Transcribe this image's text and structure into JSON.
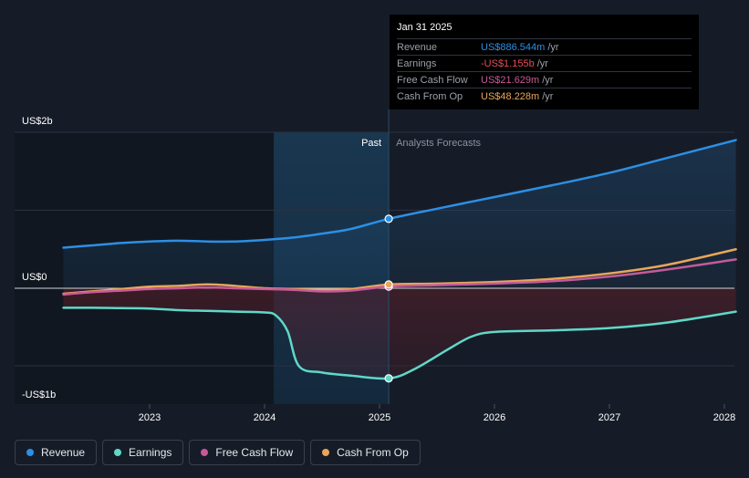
{
  "tooltip": {
    "date": "Jan 31 2025",
    "rows": [
      {
        "label": "Revenue",
        "value": "US$886.544m",
        "unit": "/yr",
        "color": "#2d8fe3"
      },
      {
        "label": "Earnings",
        "value": "-US$1.155b",
        "unit": "/yr",
        "color": "#e84b57"
      },
      {
        "label": "Free Cash Flow",
        "value": "US$21.629m",
        "unit": "/yr",
        "color": "#c65a98"
      },
      {
        "label": "Cash From Op",
        "value": "US$48.228m",
        "unit": "/yr",
        "color": "#e8a65a"
      }
    ]
  },
  "legend": [
    {
      "label": "Revenue",
      "color": "#2d8fe3"
    },
    {
      "label": "Earnings",
      "color": "#5fd8c8"
    },
    {
      "label": "Free Cash Flow",
      "color": "#c65a98"
    },
    {
      "label": "Cash From Op",
      "color": "#e8a65a"
    }
  ],
  "chart_data": {
    "type": "line",
    "y_labels": [
      "US$2b",
      "US$0",
      "-US$1b"
    ],
    "ylim": [
      -1.5,
      2.0
    ],
    "x_range": [
      2022.12,
      2028.1
    ],
    "x_ticks": [
      "2023",
      "2024",
      "2025",
      "2026",
      "2027",
      "2028"
    ],
    "x_tick_values": [
      2023,
      2024,
      2025,
      2026,
      2027,
      2028
    ],
    "past_label": "Past",
    "forecast_label": "Analysts Forecasts",
    "split_x": 2025.08,
    "highlight_start": 2024.08,
    "series": [
      {
        "name": "Revenue",
        "color": "#2d8fe3",
        "x": [
          2022.25,
          2022.5,
          2022.75,
          2023.0,
          2023.25,
          2023.5,
          2023.75,
          2024.0,
          2024.25,
          2024.5,
          2024.75,
          2025.08,
          2025.5,
          2026.0,
          2026.5,
          2027.0,
          2027.5,
          2028.1
        ],
        "values": [
          0.52,
          0.55,
          0.58,
          0.6,
          0.61,
          0.6,
          0.6,
          0.62,
          0.65,
          0.7,
          0.76,
          0.89,
          1.02,
          1.17,
          1.32,
          1.48,
          1.67,
          1.9
        ]
      },
      {
        "name": "Earnings",
        "color": "#5fd8c8",
        "x": [
          2022.25,
          2022.5,
          2022.75,
          2023.0,
          2023.25,
          2023.5,
          2023.75,
          2024.0,
          2024.1,
          2024.2,
          2024.3,
          2024.5,
          2024.75,
          2025.08,
          2025.3,
          2025.6,
          2025.8,
          2026.0,
          2026.5,
          2027.0,
          2027.5,
          2028.1
        ],
        "values": [
          -0.25,
          -0.25,
          -0.255,
          -0.26,
          -0.28,
          -0.29,
          -0.3,
          -0.31,
          -0.35,
          -0.55,
          -1.0,
          -1.08,
          -1.12,
          -1.155,
          -1.04,
          -0.78,
          -0.62,
          -0.56,
          -0.54,
          -0.51,
          -0.44,
          -0.3
        ]
      },
      {
        "name": "Free Cash Flow",
        "color": "#c65a98",
        "x": [
          2022.25,
          2022.5,
          2022.75,
          2023.0,
          2023.25,
          2023.5,
          2023.75,
          2024.0,
          2024.25,
          2024.5,
          2024.75,
          2025.08,
          2025.5,
          2026.0,
          2026.5,
          2027.0,
          2027.5,
          2028.1
        ],
        "values": [
          -0.08,
          -0.05,
          -0.03,
          -0.01,
          0.0,
          0.01,
          0.0,
          -0.01,
          -0.02,
          -0.04,
          -0.03,
          0.0216,
          0.04,
          0.06,
          0.09,
          0.15,
          0.24,
          0.37
        ]
      },
      {
        "name": "Cash From Op",
        "color": "#e8a65a",
        "x": [
          2022.25,
          2022.5,
          2022.75,
          2023.0,
          2023.25,
          2023.5,
          2023.75,
          2024.0,
          2024.25,
          2024.5,
          2024.75,
          2025.08,
          2025.5,
          2026.0,
          2026.5,
          2027.0,
          2027.5,
          2028.1
        ],
        "values": [
          -0.07,
          -0.04,
          -0.01,
          0.02,
          0.03,
          0.05,
          0.03,
          0.0,
          -0.01,
          -0.02,
          -0.01,
          0.0482,
          0.06,
          0.08,
          0.12,
          0.19,
          0.3,
          0.5
        ]
      }
    ]
  }
}
